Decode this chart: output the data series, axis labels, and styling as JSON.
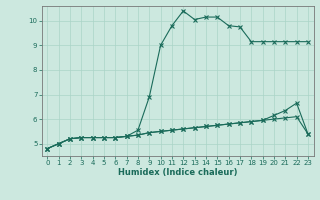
{
  "xlabel": "Humidex (Indice chaleur)",
  "background_color": "#cce8df",
  "line_color": "#1a6b5a",
  "grid_color": "#aad4c8",
  "xlim": [
    -0.5,
    23.5
  ],
  "ylim": [
    4.5,
    10.6
  ],
  "yticks": [
    5,
    6,
    7,
    8,
    9,
    10
  ],
  "xticks": [
    0,
    1,
    2,
    3,
    4,
    5,
    6,
    7,
    8,
    9,
    10,
    11,
    12,
    13,
    14,
    15,
    16,
    17,
    18,
    19,
    20,
    21,
    22,
    23
  ],
  "series1_x": [
    0,
    1,
    2,
    3,
    4,
    5,
    6,
    7,
    8,
    9,
    10,
    11,
    12,
    13,
    14,
    15,
    16,
    17,
    18,
    19,
    20,
    21,
    22,
    23
  ],
  "series1_y": [
    4.8,
    5.0,
    5.2,
    5.25,
    5.25,
    5.25,
    5.25,
    5.3,
    5.55,
    6.9,
    9.0,
    9.8,
    10.4,
    10.05,
    10.15,
    10.15,
    9.8,
    9.75,
    9.15,
    9.15,
    9.15,
    9.15,
    9.15,
    9.15
  ],
  "series2_x": [
    0,
    1,
    2,
    3,
    4,
    5,
    6,
    7,
    8,
    9,
    10,
    11,
    12,
    13,
    14,
    15,
    16,
    17,
    18,
    19,
    20,
    21,
    22,
    23
  ],
  "series2_y": [
    4.8,
    5.0,
    5.2,
    5.25,
    5.25,
    5.25,
    5.25,
    5.3,
    5.35,
    5.45,
    5.5,
    5.55,
    5.6,
    5.65,
    5.7,
    5.75,
    5.8,
    5.85,
    5.9,
    5.95,
    6.15,
    6.35,
    6.65,
    5.4
  ],
  "series3_x": [
    0,
    1,
    2,
    3,
    4,
    5,
    6,
    7,
    8,
    9,
    10,
    11,
    12,
    13,
    14,
    15,
    16,
    17,
    18,
    19,
    20,
    21,
    22,
    23
  ],
  "series3_y": [
    4.8,
    5.0,
    5.2,
    5.25,
    5.25,
    5.25,
    5.25,
    5.3,
    5.35,
    5.45,
    5.5,
    5.55,
    5.6,
    5.65,
    5.7,
    5.75,
    5.8,
    5.85,
    5.9,
    5.95,
    6.0,
    6.05,
    6.1,
    5.4
  ],
  "xlabel_fontsize": 6,
  "tick_fontsize": 5
}
